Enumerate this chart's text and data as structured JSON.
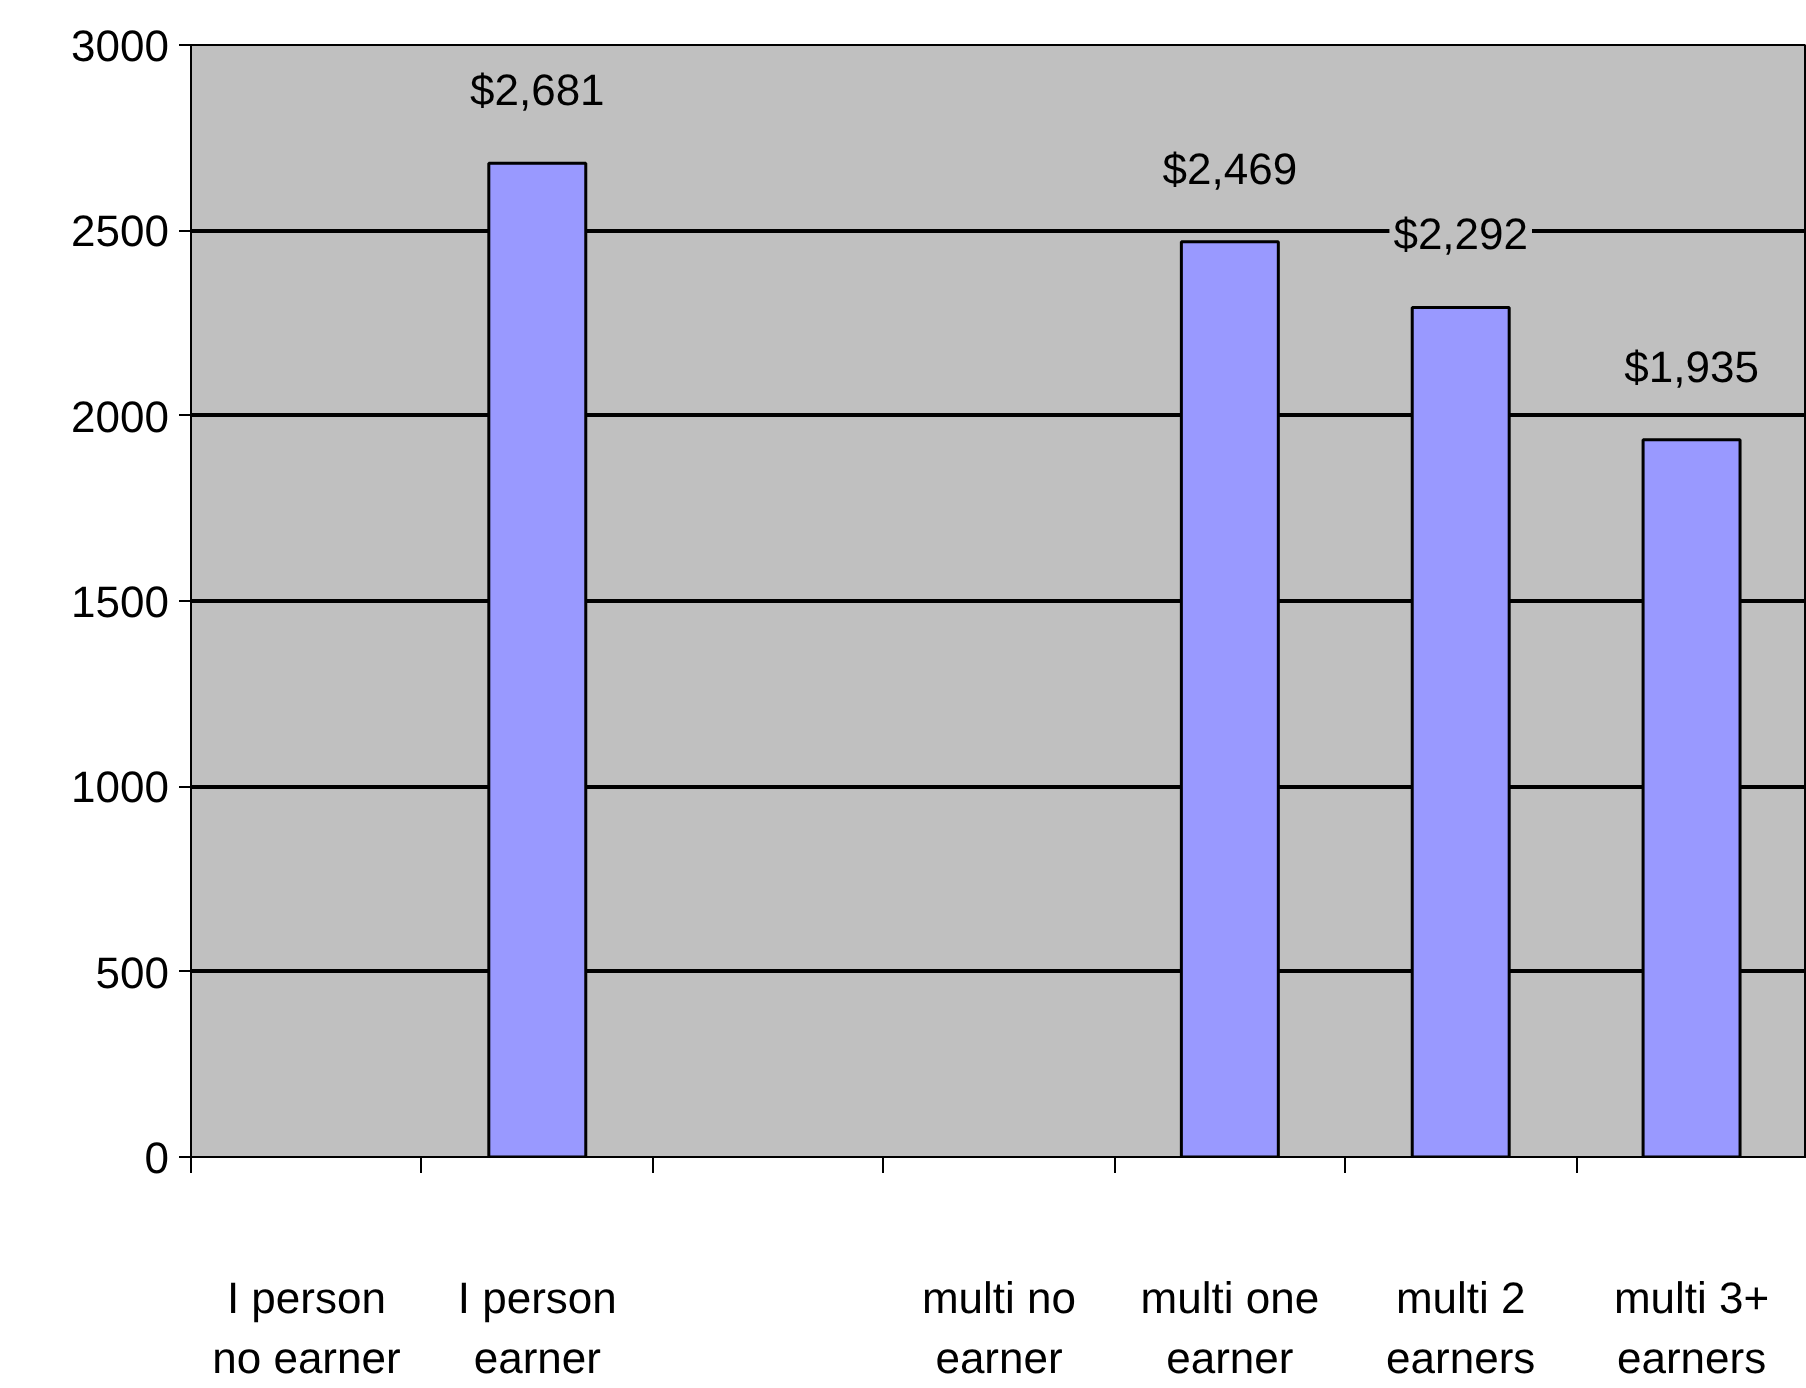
{
  "chart_data": {
    "type": "bar",
    "categories": [
      "I person\nno earner",
      "I person\nearner",
      null,
      "multi no\nearner",
      "multi one\nearner",
      "multi 2\nearners",
      "multi 3+\nearners"
    ],
    "values": [
      null,
      2681,
      null,
      null,
      2469,
      2292,
      1935
    ],
    "value_labels": [
      null,
      "$2,681",
      null,
      null,
      "$2,469",
      "$2,292",
      "$1,935"
    ],
    "color": "#9999ff",
    "ylim": [
      0,
      3000
    ],
    "yticks": [
      0,
      500,
      1000,
      1500,
      2000,
      2500,
      3000
    ],
    "grid": "y"
  }
}
